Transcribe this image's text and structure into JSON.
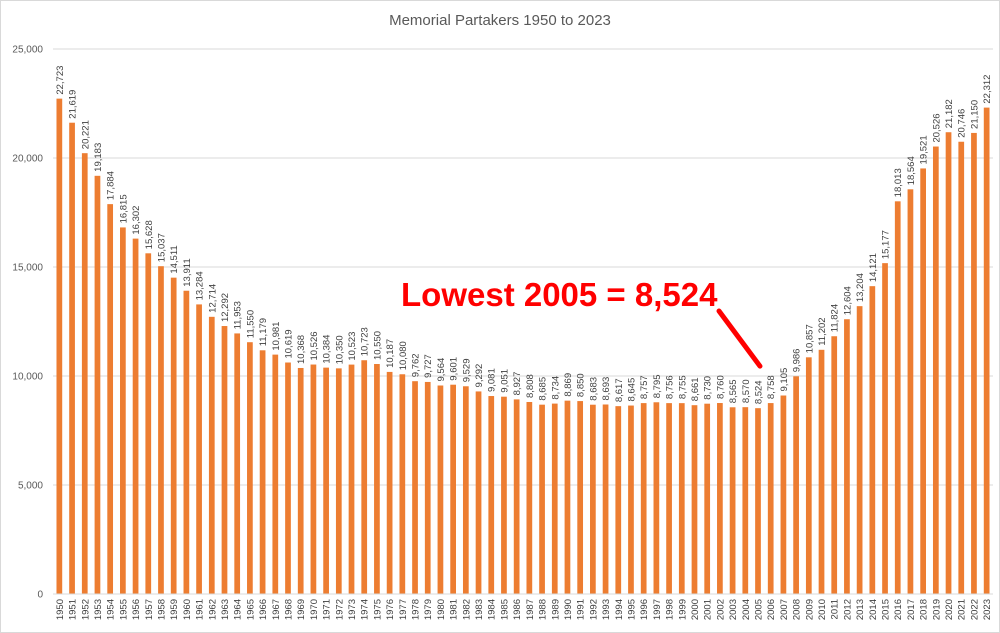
{
  "chart_data": {
    "type": "bar",
    "title": "Memorial Partakers 1950 to 2023",
    "xlabel": "",
    "ylabel": "",
    "ylim": [
      0,
      25000
    ],
    "yticks": [
      0,
      5000,
      10000,
      15000,
      20000,
      25000
    ],
    "ytick_labels": [
      "0",
      "5,000",
      "10,000",
      "15,000",
      "20,000",
      "25,000"
    ],
    "grid": true,
    "legend": "none",
    "bar_color": "#ed7d31",
    "grid_color": "#d9d9d9",
    "annotation": {
      "text": "Lowest 2005 = 8,524",
      "color": "#ff0000",
      "target_category": "2005"
    },
    "categories": [
      "1950",
      "1951",
      "1952",
      "1953",
      "1954",
      "1955",
      "1956",
      "1957",
      "1958",
      "1959",
      "1960",
      "1961",
      "1962",
      "1963",
      "1964",
      "1965",
      "1966",
      "1967",
      "1968",
      "1969",
      "1970",
      "1971",
      "1972",
      "1973",
      "1974",
      "1975",
      "1976",
      "1977",
      "1978",
      "1979",
      "1980",
      "1981",
      "1982",
      "1983",
      "1984",
      "1985",
      "1986",
      "1987",
      "1988",
      "1989",
      "1990",
      "1991",
      "1992",
      "1993",
      "1994",
      "1995",
      "1996",
      "1997",
      "1998",
      "1999",
      "2000",
      "2001",
      "2002",
      "2003",
      "2004",
      "2005",
      "2006",
      "2007",
      "2008",
      "2009",
      "2010",
      "2011",
      "2012",
      "2013",
      "2014",
      "2015",
      "2016",
      "2017",
      "2018",
      "2019",
      "2020",
      "2021",
      "2022",
      "2023"
    ],
    "values": [
      22723,
      21619,
      20221,
      19183,
      17884,
      16815,
      16302,
      15628,
      15037,
      14511,
      13911,
      13284,
      12714,
      12292,
      11953,
      11550,
      11179,
      10981,
      10619,
      10368,
      10526,
      10384,
      10350,
      10523,
      10723,
      10550,
      10187,
      10080,
      9762,
      9727,
      9564,
      9601,
      9529,
      9292,
      9081,
      9051,
      8927,
      8808,
      8685,
      8734,
      8869,
      8850,
      8683,
      8693,
      8617,
      8645,
      8757,
      8795,
      8756,
      8755,
      8661,
      8730,
      8760,
      8565,
      8570,
      8524,
      8758,
      9105,
      9986,
      10857,
      11202,
      11824,
      12604,
      13204,
      14121,
      15177,
      18013,
      18564,
      19521,
      20526,
      21182,
      20746,
      21150,
      22312
    ],
    "data_labels": [
      "22,723",
      "21,619",
      "20,221",
      "19,183",
      "17,884",
      "16,815",
      "16,302",
      "15,628",
      "15,037",
      "14,511",
      "13,911",
      "13,284",
      "12,714",
      "12,292",
      "11,953",
      "11,550",
      "11,179",
      "10,981",
      "10,619",
      "10,368",
      "10,526",
      "10,384",
      "10,350",
      "10,523",
      "10,723",
      "10,550",
      "10,187",
      "10,080",
      "9,762",
      "9,727",
      "9,564",
      "9,601",
      "9,529",
      "9,292",
      "9,081",
      "9,051",
      "8,927",
      "8,808",
      "8,685",
      "8,734",
      "8,869",
      "8,850",
      "8,683",
      "8,693",
      "8,617",
      "8,645",
      "8,757",
      "8,795",
      "8,756",
      "8,755",
      "8,661",
      "8,730",
      "8,760",
      "8,565",
      "8,570",
      "8,524",
      "8,758",
      "9,105",
      "9,986",
      "10,857",
      "11,202",
      "11,824",
      "12,604",
      "13,204",
      "14,121",
      "15,177",
      "18,013",
      "18,564",
      "19,521",
      "20,526",
      "21,182",
      "20,746",
      "21,150",
      "22,312"
    ]
  }
}
